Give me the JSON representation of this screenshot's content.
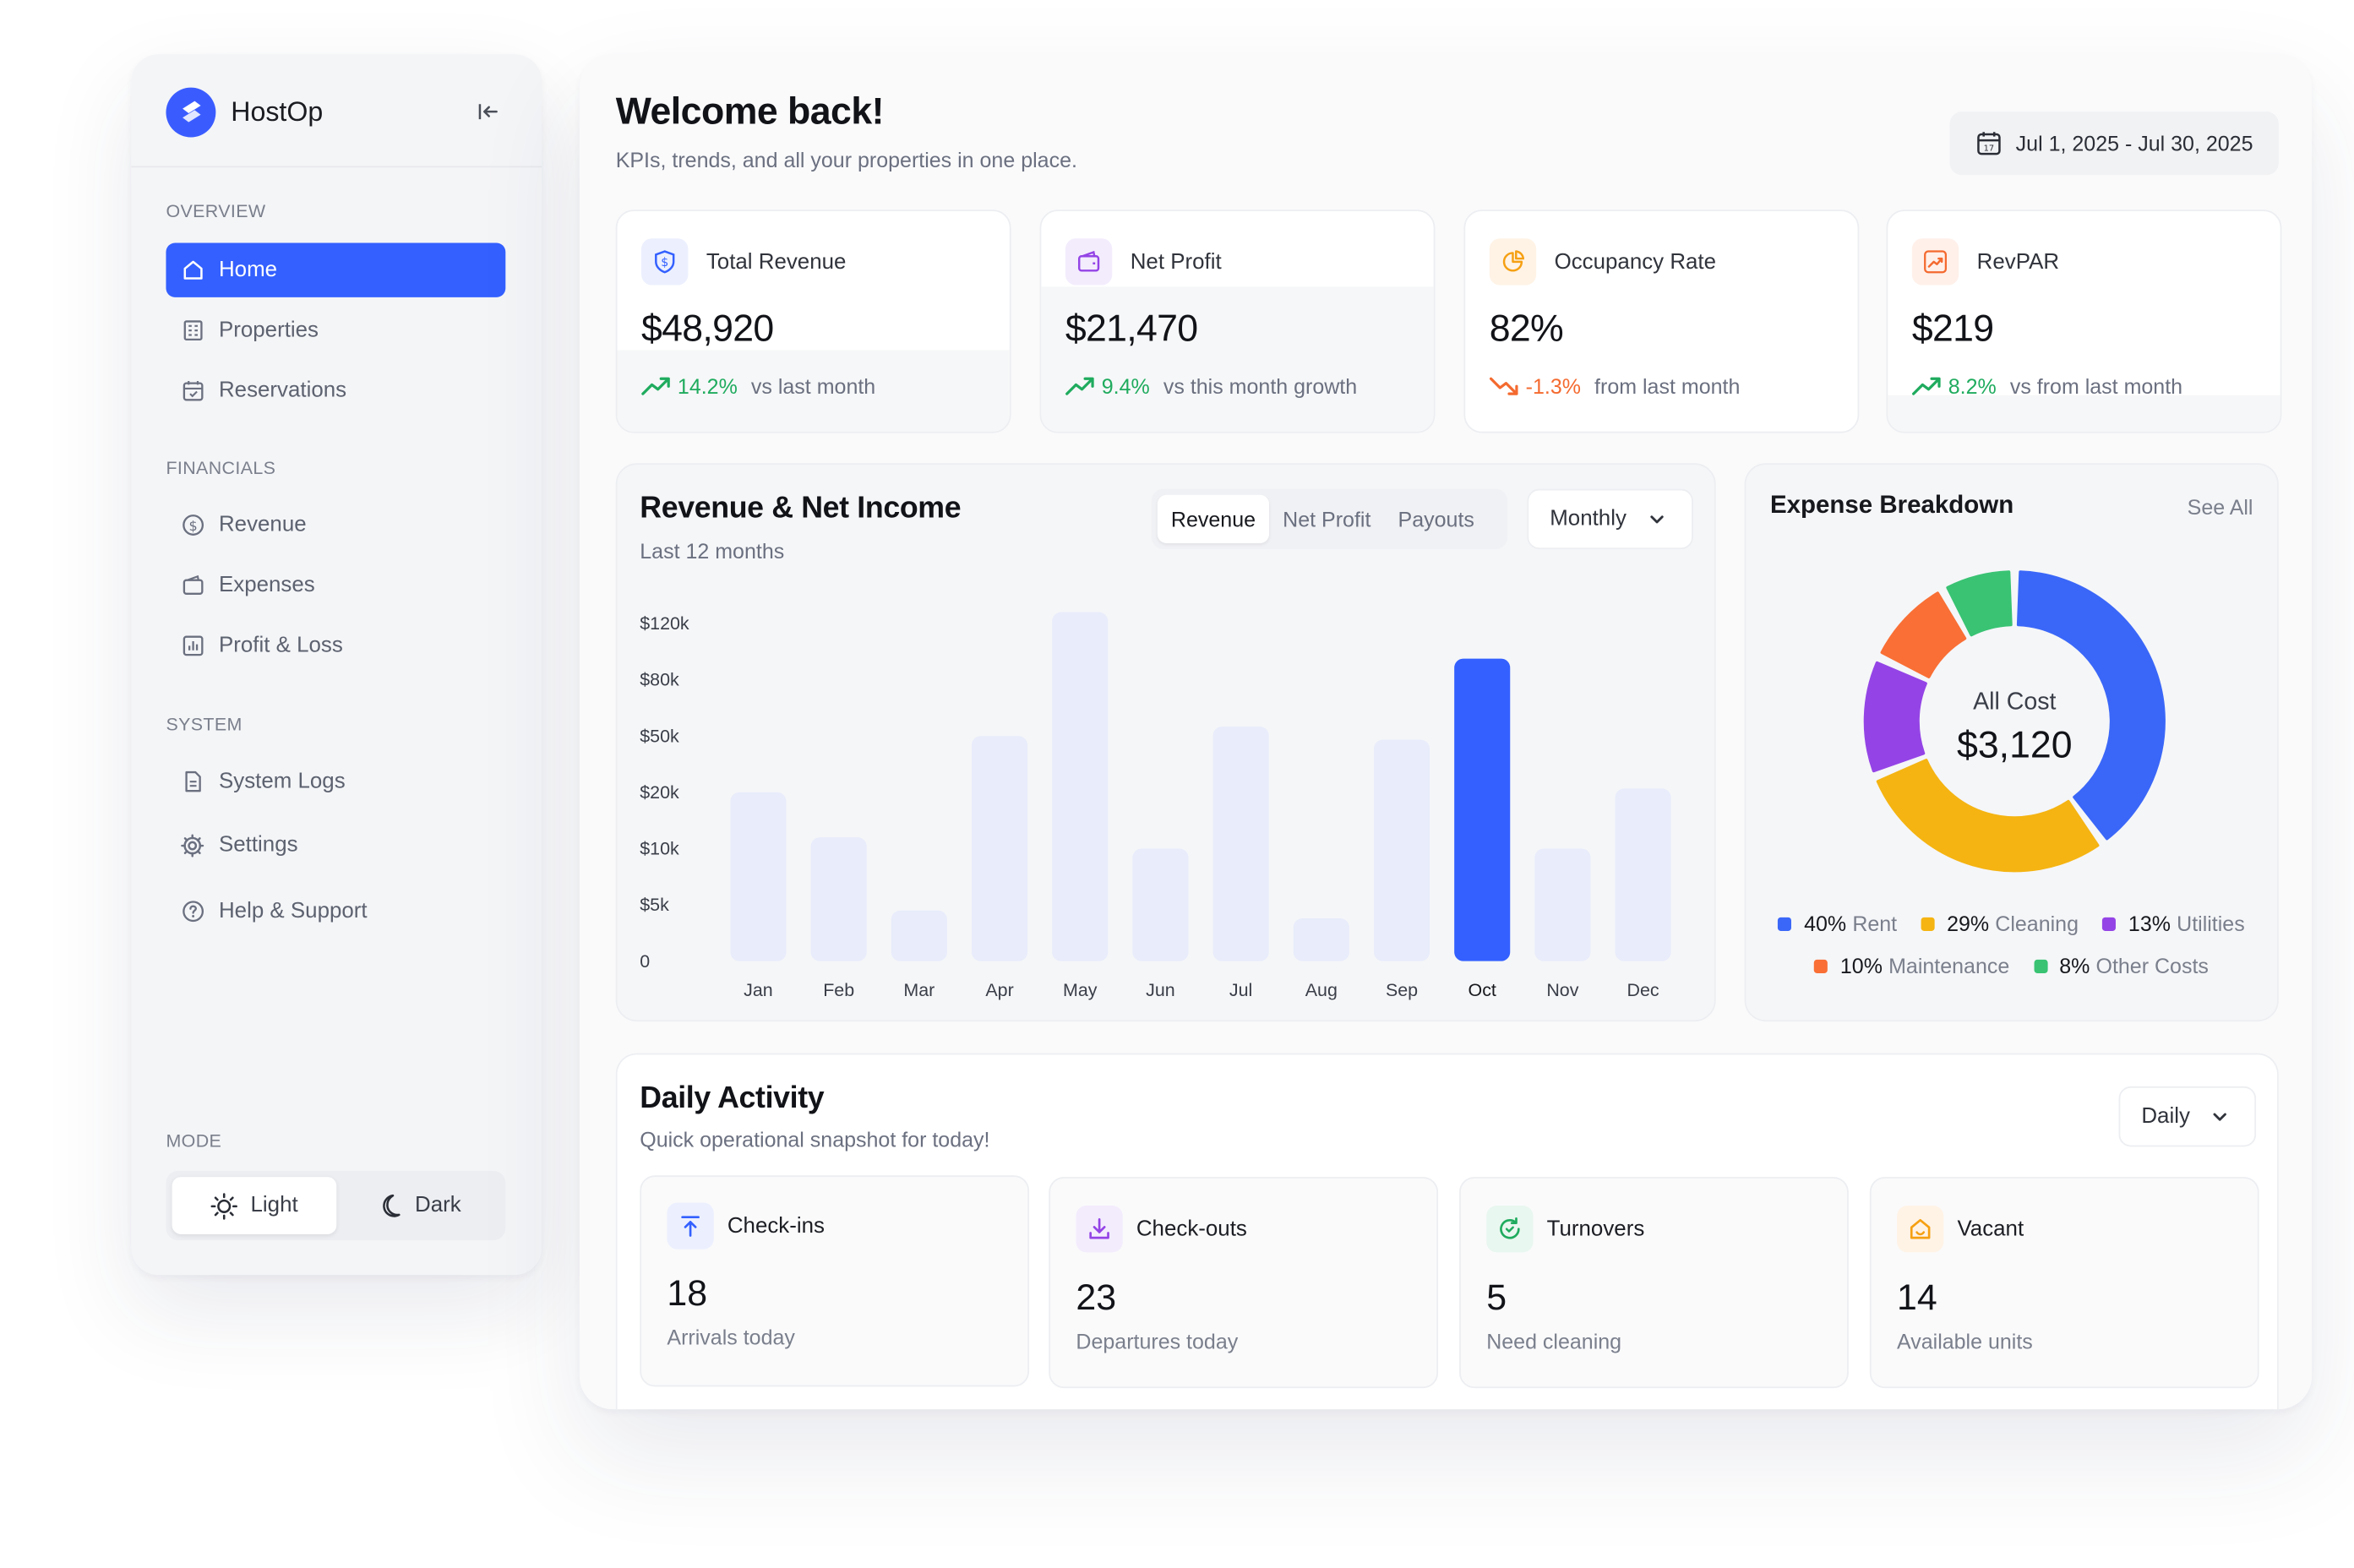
{
  "brand": {
    "name": "HostOp"
  },
  "sidebar": {
    "sections": {
      "overview": "OVERVIEW",
      "financials": "FINANCIALS",
      "system": "SYSTEM",
      "mode": "MODE"
    },
    "items": [
      {
        "label": "Home",
        "icon": "home-icon"
      },
      {
        "label": "Properties",
        "icon": "building-icon"
      },
      {
        "label": "Reservations",
        "icon": "calendar-icon"
      },
      {
        "label": "Revenue",
        "icon": "dollar-circle-icon"
      },
      {
        "label": "Expenses",
        "icon": "wallet-icon"
      },
      {
        "label": "Profit & Loss",
        "icon": "bar-chart-icon"
      },
      {
        "label": "System Logs",
        "icon": "document-icon"
      },
      {
        "label": "Settings",
        "icon": "gear-icon"
      },
      {
        "label": "Help & Support",
        "icon": "help-circle-icon"
      }
    ],
    "mode": {
      "light": "Light",
      "dark": "Dark",
      "selected": "Light"
    }
  },
  "header": {
    "title": "Welcome back!",
    "subtitle": "KPIs, trends, and all your properties in one place.",
    "date_range": "Jul 1, 2025 - Jul 30, 2025"
  },
  "kpis": [
    {
      "label": "Total Revenue",
      "value": "$48,920",
      "delta": "14.2%",
      "note": "vs last month",
      "trend": "up",
      "icon": "shield-dollar-icon"
    },
    {
      "label": "Net Profit",
      "value": "$21,470",
      "delta": "9.4%",
      "note": "vs this month growth",
      "trend": "up",
      "icon": "wallet-icon"
    },
    {
      "label": "Occupancy Rate",
      "value": "82%",
      "delta": "-1.3%",
      "note": "from last month",
      "trend": "down",
      "icon": "pie-icon"
    },
    {
      "label": "RevPAR",
      "value": "$219",
      "delta": "8.2%",
      "note": "vs from last month",
      "trend": "up",
      "icon": "trend-up-icon"
    }
  ],
  "revenue_card": {
    "title": "Revenue & Net Income",
    "subtitle": "Last 12 months",
    "tabs": [
      "Revenue",
      "Net Profit",
      "Payouts"
    ],
    "selected_tab": "Revenue",
    "period": "Monthly"
  },
  "chart_data": {
    "type": "bar",
    "categories": [
      "Jan",
      "Feb",
      "Mar",
      "Apr",
      "May",
      "Jun",
      "Jul",
      "Aug",
      "Sep",
      "Oct",
      "Nov",
      "Dec"
    ],
    "values": [
      20000,
      12000,
      4500,
      50000,
      128000,
      10000,
      55000,
      3800,
      48000,
      95000,
      10000,
      22000
    ],
    "highlight": "Oct",
    "y_ticks": [
      "0",
      "$5k",
      "$10k",
      "$20k",
      "$50k",
      "$80k",
      "$120k"
    ],
    "y_tick_values": [
      0,
      5000,
      10000,
      20000,
      50000,
      80000,
      120000
    ],
    "axis_scale": "piecewise (equal spacing between tick labels)",
    "grid": false,
    "colors": {
      "bar": "#e8ecfb",
      "highlight": "#3360ff"
    }
  },
  "expense": {
    "title": "Expense Breakdown",
    "see_all": "See All",
    "center_label": "All Cost",
    "center_value": "$3,120",
    "segments": [
      {
        "pct": "40%",
        "label": "Rent",
        "value": 40,
        "color": "#3a67f8"
      },
      {
        "pct": "29%",
        "label": "Cleaning",
        "value": 29,
        "color": "#f5b412"
      },
      {
        "pct": "13%",
        "label": "Utilities",
        "value": 13,
        "color": "#9444e6"
      },
      {
        "pct": "10%",
        "label": "Maintenance",
        "value": 10,
        "color": "#f96f35"
      },
      {
        "pct": "8%",
        "label": "Other Costs",
        "value": 8,
        "color": "#39c373"
      }
    ]
  },
  "daily": {
    "title": "Daily Activity",
    "subtitle": "Quick operational snapshot for today!",
    "period": "Daily",
    "cards": [
      {
        "label": "Check-ins",
        "value": "18",
        "note": "Arrivals today",
        "icon": "arrow-up-icon"
      },
      {
        "label": "Check-outs",
        "value": "23",
        "note": "Departures today",
        "icon": "download-icon"
      },
      {
        "label": "Turnovers",
        "value": "5",
        "note": "Need cleaning",
        "icon": "refresh-icon"
      },
      {
        "label": "Vacant",
        "value": "14",
        "note": "Available units",
        "icon": "home-icon"
      }
    ]
  }
}
